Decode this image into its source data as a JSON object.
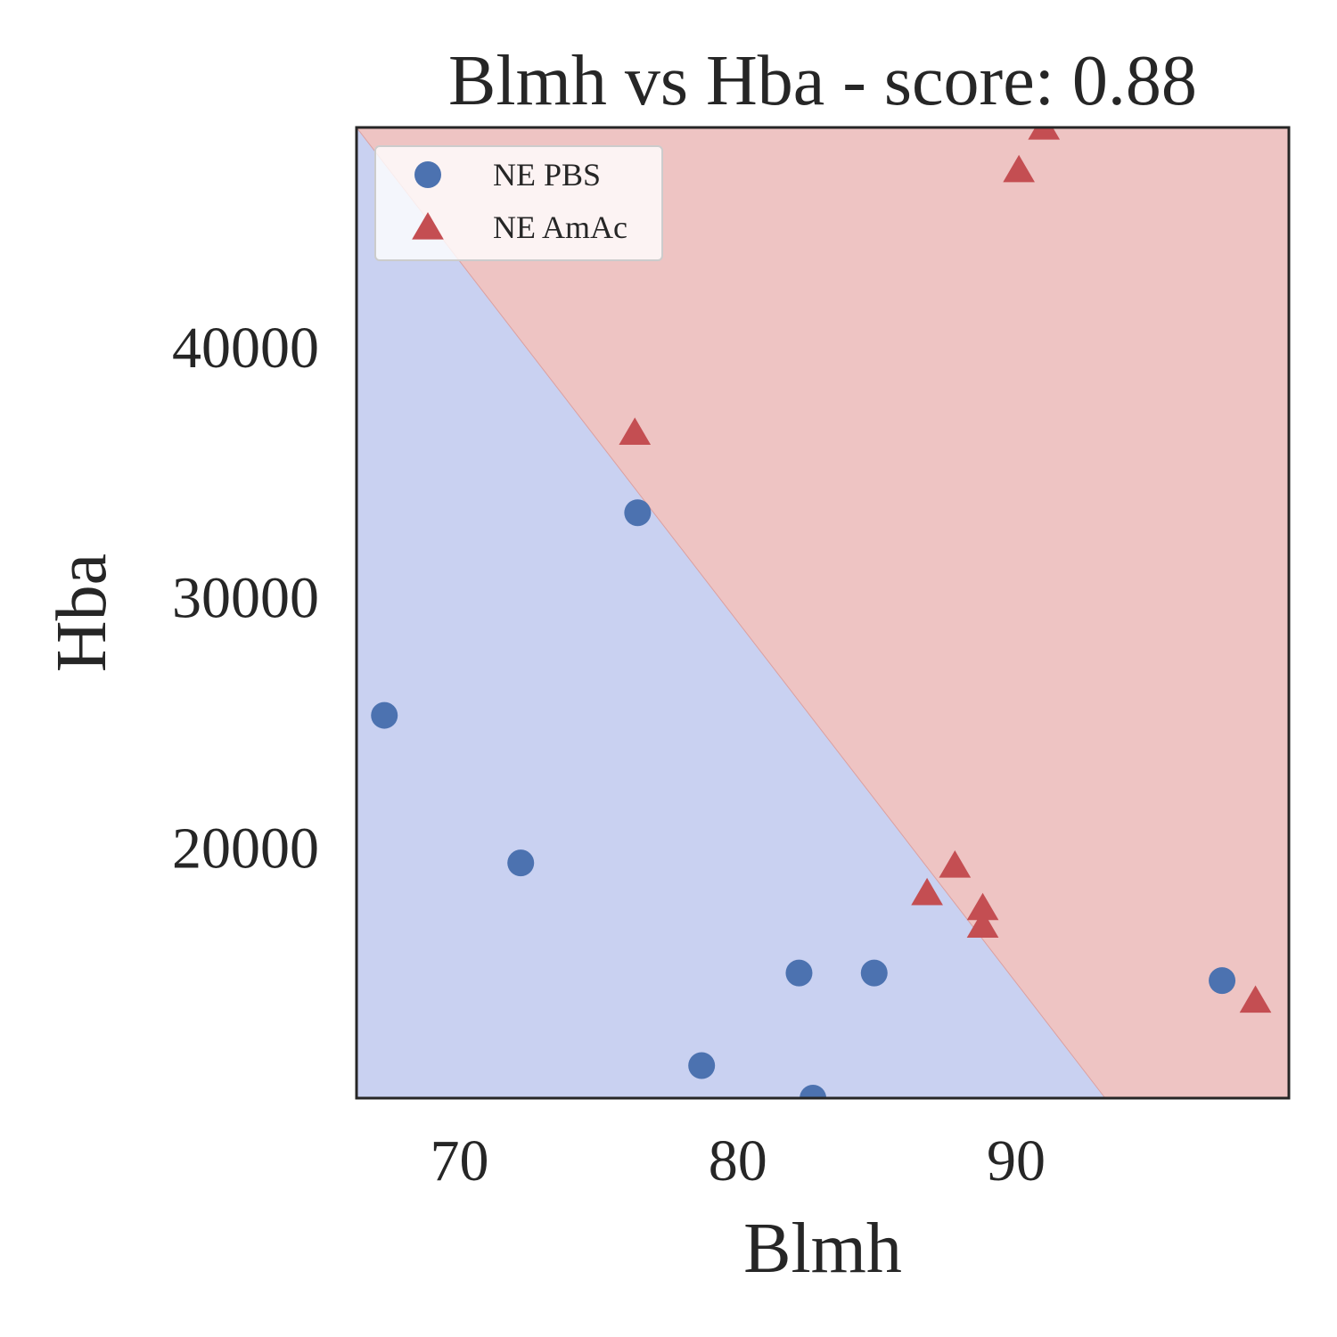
{
  "chart_data": {
    "type": "scatter",
    "title": "Blmh vs Hba - score: 0.88",
    "xlabel": "Blmh",
    "ylabel": "Hba",
    "xlim": [
      66.3,
      99.8
    ],
    "ylim": [
      10000,
      48800
    ],
    "xticks": [
      70,
      80,
      90
    ],
    "yticks": [
      20000,
      30000,
      40000
    ],
    "grid": false,
    "legend_position": "top-left",
    "decision_boundary": {
      "points": [
        [
          66.3,
          48800
        ],
        [
          93.2,
          10000
        ]
      ],
      "below_class": "NE PBS",
      "above_class": "NE AmAc"
    },
    "series": [
      {
        "name": "NE PBS",
        "marker": "circle",
        "color": "#4c72b0",
        "region_color": "#c9d1f1",
        "points": [
          [
            67.3,
            25300
          ],
          [
            72.2,
            19400
          ],
          [
            76.4,
            33400
          ],
          [
            78.7,
            11300
          ],
          [
            82.2,
            15000
          ],
          [
            82.7,
            10000
          ],
          [
            84.9,
            15000
          ],
          [
            97.4,
            14700
          ]
        ]
      },
      {
        "name": "NE AmAc",
        "marker": "triangle",
        "color": "#c44e52",
        "region_color": "#eec4c3",
        "points": [
          [
            76.3,
            36600
          ],
          [
            86.8,
            18200
          ],
          [
            87.8,
            19300
          ],
          [
            88.8,
            16900
          ],
          [
            88.8,
            17600
          ],
          [
            90.1,
            47100
          ],
          [
            91.0,
            48800
          ],
          [
            98.6,
            13900
          ]
        ]
      }
    ]
  }
}
